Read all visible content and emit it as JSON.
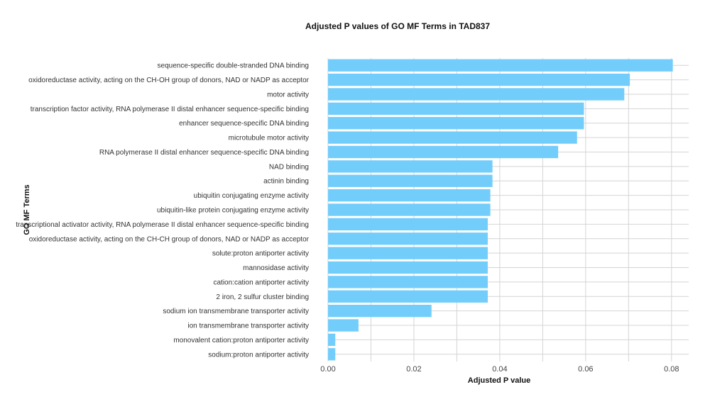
{
  "chart_data": {
    "type": "bar",
    "orientation": "horizontal",
    "title": "Adjusted P values of GO MF Terms in TAD837",
    "xlabel": "Adjusted P value",
    "ylabel": "GO MF Terms",
    "xlim": [
      0,
      0.084
    ],
    "xticks": [
      "0.00",
      "0.02",
      "0.04",
      "0.06",
      "0.08"
    ],
    "xtick_values": [
      0,
      0.02,
      0.04,
      0.06,
      0.08
    ],
    "grid": true,
    "bar_color": "#73CDFB",
    "categories": [
      "sequence-specific double-stranded DNA binding",
      "oxidoreductase activity, acting on the CH-OH group of donors, NAD or NADP as acceptor",
      "motor activity",
      "transcription factor activity, RNA polymerase II distal enhancer sequence-specific binding",
      "enhancer sequence-specific DNA binding",
      "microtubule motor activity",
      "RNA polymerase II distal enhancer sequence-specific DNA binding",
      "NAD binding",
      "actinin binding",
      "ubiquitin conjugating enzyme activity",
      "ubiquitin-like protein conjugating enzyme activity",
      "transcriptional activator activity, RNA polymerase II distal enhancer sequence-specific binding",
      "oxidoreductase activity, acting on the CH-CH group of donors, NAD or NADP as acceptor",
      "solute:proton antiporter activity",
      "mannosidase activity",
      "cation:cation antiporter activity",
      "2 iron, 2 sulfur cluster binding",
      "sodium ion transmembrane transporter activity",
      "ion transmembrane transporter activity",
      "monovalent cation:proton antiporter activity",
      "sodium:proton antiporter activity"
    ],
    "values": [
      0.0803,
      0.0703,
      0.069,
      0.0596,
      0.0596,
      0.058,
      0.0536,
      0.0383,
      0.0383,
      0.0378,
      0.0378,
      0.0372,
      0.0372,
      0.0372,
      0.0372,
      0.0372,
      0.0372,
      0.0241,
      0.0071,
      0.0017,
      0.0017
    ]
  }
}
